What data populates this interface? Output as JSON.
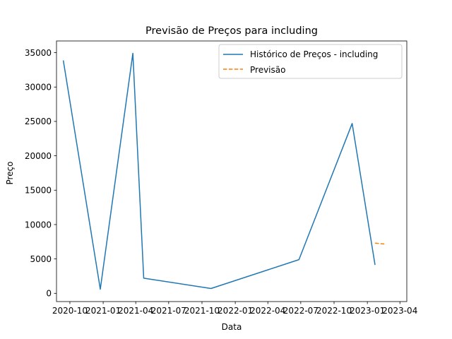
{
  "chart_data": {
    "type": "line",
    "title": "Previsão de Preços para including",
    "xlabel": "Data",
    "ylabel": "Preço",
    "xlim": [
      "2020-08-25",
      "2023-04-20"
    ],
    "ylim": [
      -1200,
      36700
    ],
    "x_ticks": [
      "2020-10",
      "2021-01",
      "2021-04",
      "2021-07",
      "2021-10",
      "2022-01",
      "2022-04",
      "2022-07",
      "2022-10",
      "2023-01",
      "2023-04"
    ],
    "x_tick_dates": [
      "2020-10-01",
      "2021-01-01",
      "2021-04-01",
      "2021-07-01",
      "2021-10-01",
      "2022-01-01",
      "2022-04-01",
      "2022-07-01",
      "2022-10-01",
      "2023-01-01",
      "2023-04-01"
    ],
    "y_ticks": [
      0,
      5000,
      10000,
      15000,
      20000,
      25000,
      30000,
      35000
    ],
    "y_tick_labels": [
      "0",
      "5000",
      "10000",
      "15000",
      "20000",
      "25000",
      "30000",
      "35000"
    ],
    "legend_position": "top-right",
    "grid": false,
    "series": [
      {
        "name": "Histórico de Preços - including",
        "color": "#1f77b4",
        "style": "solid",
        "x": [
          "2020-09-13",
          "2020-12-24",
          "2021-03-24",
          "2021-04-23",
          "2021-10-26",
          "2022-06-26",
          "2022-11-20",
          "2023-01-22"
        ],
        "values": [
          33800,
          600,
          34900,
          2200,
          700,
          4900,
          24700,
          4200
        ]
      },
      {
        "name": "Previsão",
        "color": "#ff7f0e",
        "style": "dashed",
        "x": [
          "2023-01-22",
          "2023-02-22"
        ],
        "values": [
          7300,
          7150
        ]
      }
    ]
  }
}
